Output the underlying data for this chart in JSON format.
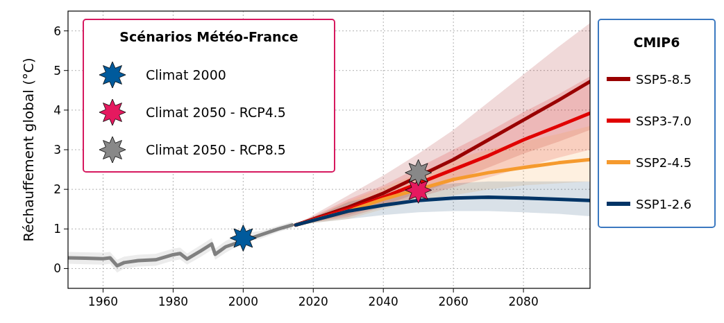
{
  "chart_data": {
    "type": "line",
    "ylabel": "Réchauffement global (°C)",
    "xlim": [
      1950,
      2099
    ],
    "ylim": [
      -0.5,
      6.5
    ],
    "xticks": [
      1960,
      1980,
      2000,
      2020,
      2040,
      2060,
      2080
    ],
    "yticks": [
      0,
      1,
      2,
      3,
      4,
      5,
      6
    ],
    "grid": true,
    "legend": "top",
    "legend_title": "Scénarios Météo-France",
    "annotations": [
      "CMIP6"
    ],
    "series": [
      {
        "color": "#808080",
        "x": [
          1950,
          1955,
          1960,
          1962,
          1964,
          1966,
          1970,
          1975,
          1980,
          1982,
          1984,
          1988,
          1991,
          1992,
          1995,
          2000,
          2005,
          2010,
          2014
        ],
        "values": [
          0.27,
          0.26,
          0.25,
          0.27,
          0.07,
          0.15,
          0.2,
          0.22,
          0.35,
          0.38,
          0.24,
          0.45,
          0.62,
          0.36,
          0.55,
          null,
          0.85,
          1.0,
          1.1
        ],
        "lower": [
          0.12,
          0.11,
          0.1,
          0.12,
          -0.1,
          0.0,
          0.05,
          0.07,
          0.2,
          0.23,
          0.1,
          0.3,
          0.47,
          0.22,
          0.4,
          0.65,
          0.75,
          0.92,
          1.02
        ],
        "upper": [
          0.42,
          0.41,
          0.4,
          0.42,
          0.22,
          0.3,
          0.35,
          0.37,
          0.5,
          0.53,
          0.38,
          0.6,
          0.77,
          0.5,
          0.7,
          0.89,
          0.95,
          1.08,
          1.18
        ]
      },
      {
        "name": "SSP5-8.5",
        "color": "#990000",
        "x": [
          2015,
          2030,
          2040,
          2050,
          2060,
          2070,
          2080,
          2090,
          2099
        ],
        "values": [
          1.1,
          1.55,
          1.9,
          null,
          2.75,
          3.25,
          3.75,
          4.25,
          4.72
        ],
        "lower": [
          1.1,
          1.35,
          1.6,
          1.9,
          2.2,
          2.55,
          2.9,
          3.2,
          3.5
        ],
        "upper": [
          1.1,
          1.85,
          2.35,
          2.9,
          3.5,
          4.2,
          4.9,
          5.6,
          6.2
        ]
      },
      {
        "name": "SSP3-7.0",
        "color": "#e00000",
        "x": [
          2015,
          2030,
          2040,
          2050,
          2060,
          2070,
          2080,
          2090,
          2099
        ],
        "values": [
          1.1,
          1.5,
          1.8,
          2.15,
          2.5,
          2.85,
          3.25,
          3.6,
          3.92
        ],
        "lower": [
          1.1,
          1.3,
          1.55,
          1.8,
          2.05,
          2.3,
          2.55,
          2.8,
          3.0
        ],
        "upper": [
          1.1,
          1.75,
          2.1,
          2.55,
          3.0,
          3.45,
          3.95,
          4.4,
          4.85
        ]
      },
      {
        "name": "SSP2-4.5",
        "color": "#f59a2e",
        "x": [
          2015,
          2030,
          2040,
          2050,
          2060,
          2070,
          2080,
          2090,
          2099
        ],
        "values": [
          1.1,
          1.45,
          1.75,
          null,
          2.25,
          2.42,
          2.55,
          2.67,
          2.75
        ],
        "lower": [
          1.1,
          1.25,
          1.5,
          1.7,
          1.85,
          2.0,
          2.1,
          2.15,
          2.2
        ],
        "upper": [
          1.1,
          1.7,
          2.05,
          2.4,
          2.75,
          3.0,
          3.2,
          3.4,
          3.6
        ]
      },
      {
        "name": "SSP1-2.6",
        "color": "#003466",
        "x": [
          2015,
          2030,
          2040,
          2050,
          2060,
          2070,
          2080,
          2090,
          2099
        ],
        "values": [
          1.1,
          1.45,
          1.6,
          1.72,
          1.78,
          1.8,
          1.78,
          1.75,
          1.72
        ],
        "lower": [
          1.1,
          1.25,
          1.35,
          1.42,
          1.45,
          1.45,
          1.42,
          1.38,
          1.32
        ],
        "upper": [
          1.1,
          1.68,
          1.88,
          2.05,
          2.15,
          2.2,
          2.2,
          2.2,
          2.2
        ]
      },
      {
        "type": "scatter",
        "name": "Climat 2000",
        "color": "#005a9c",
        "marker": "star",
        "x": [
          2000
        ],
        "values": [
          0.77
        ]
      },
      {
        "type": "scatter",
        "name": "Climat 2050 - RCP4.5",
        "color": "#e5195f",
        "marker": "star",
        "x": [
          2050
        ],
        "values": [
          1.98
        ]
      },
      {
        "type": "scatter",
        "name": "Climat 2050 - RCP8.5",
        "color": "#888888",
        "marker": "star",
        "x": [
          2050
        ],
        "values": [
          2.42
        ]
      }
    ]
  }
}
